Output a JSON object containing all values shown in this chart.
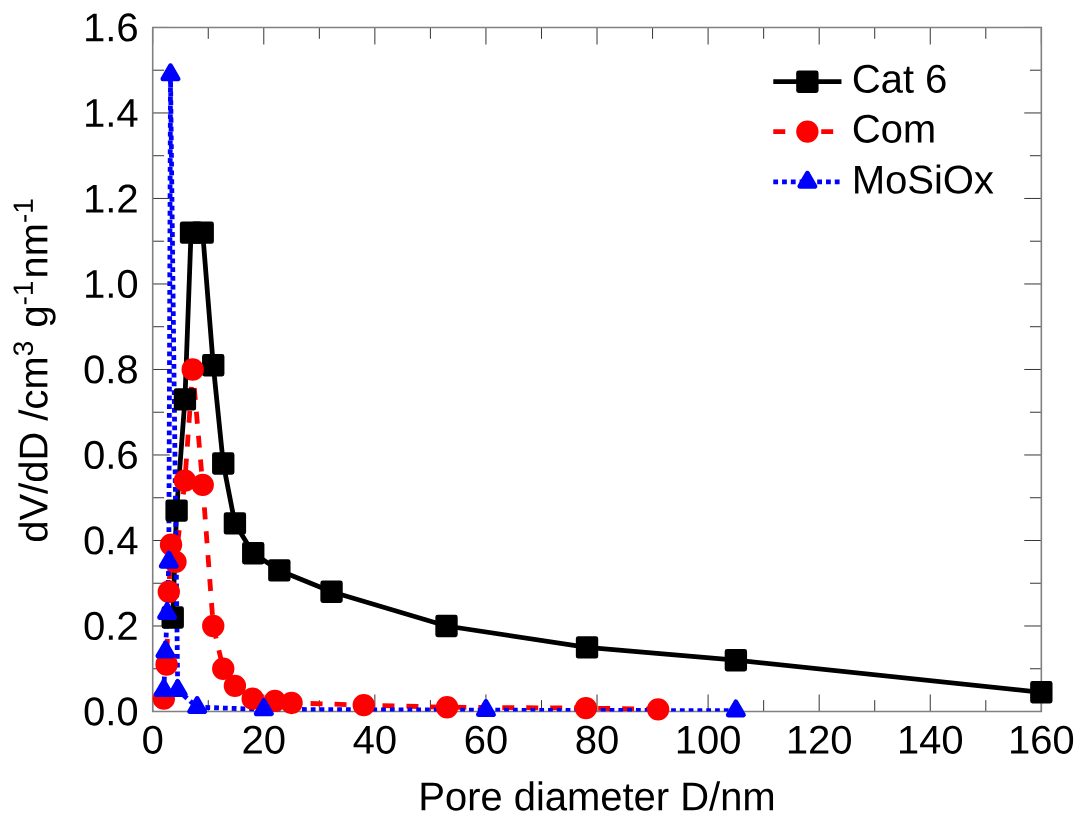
{
  "chart_data": {
    "type": "line",
    "xlabel": "Pore diameter D/nm",
    "ylabel": "dV/dD /cm$^{3}$ g$^{-1}$nm$^{-1}$",
    "xlim": [
      0,
      160
    ],
    "ylim": [
      0,
      1.6
    ],
    "xticks": [
      0,
      20,
      40,
      60,
      80,
      100,
      120,
      140,
      160
    ],
    "yticks": [
      {
        "value": 0,
        "label": "0.0"
      },
      {
        "value": 0.2,
        "label": "0.2"
      },
      {
        "value": 0.4,
        "label": "0.4"
      },
      {
        "value": 0.6,
        "label": "0.6"
      },
      {
        "value": 0.8,
        "label": "0.8"
      },
      {
        "value": 1.0,
        "label": "1.0"
      },
      {
        "value": 1.2,
        "label": "1.2"
      },
      {
        "value": 1.4,
        "label": "1.4"
      },
      {
        "value": 1.6,
        "label": "1.6"
      }
    ],
    "grid": false,
    "legend": "top right",
    "series": [
      {
        "name": "Cat 6",
        "color": "#000000",
        "marker": "square",
        "line_style": "solid",
        "x": [
          3.6,
          4.3,
          5.8,
          6.9,
          9.0,
          10.9,
          12.7,
          14.8,
          18.1,
          22.8,
          32.2,
          52.9,
          78.2,
          105,
          160
        ],
        "values": [
          0.22,
          0.47,
          0.73,
          1.12,
          1.12,
          0.81,
          0.58,
          0.44,
          0.37,
          0.33,
          0.28,
          0.2,
          0.15,
          0.12,
          0.045
        ]
      },
      {
        "name": "Com",
        "color": "#ff0000",
        "marker": "circle",
        "line_style": "dashed",
        "x": [
          2,
          2.5,
          2.9,
          3.3,
          4.1,
          5.8,
          7.2,
          9.0,
          10.9,
          12.7,
          14.8,
          18,
          22,
          25,
          38,
          53,
          78,
          91
        ],
        "values": [
          0.03,
          0.11,
          0.28,
          0.39,
          0.35,
          0.54,
          0.8,
          0.53,
          0.2,
          0.1,
          0.06,
          0.03,
          0.025,
          0.02,
          0.015,
          0.01,
          0.008,
          0.005
        ]
      },
      {
        "name": "MoSiOx",
        "color": "#0000ff",
        "marker": "triangle",
        "line_style": "dotted",
        "x": [
          2,
          2.3,
          2.6,
          2.9,
          3.2,
          4.5,
          8,
          20,
          60,
          105
        ],
        "values": [
          0.05,
          0.14,
          0.23,
          0.35,
          1.49,
          0.05,
          0.01,
          0.005,
          0.003,
          0.002
        ]
      }
    ]
  }
}
